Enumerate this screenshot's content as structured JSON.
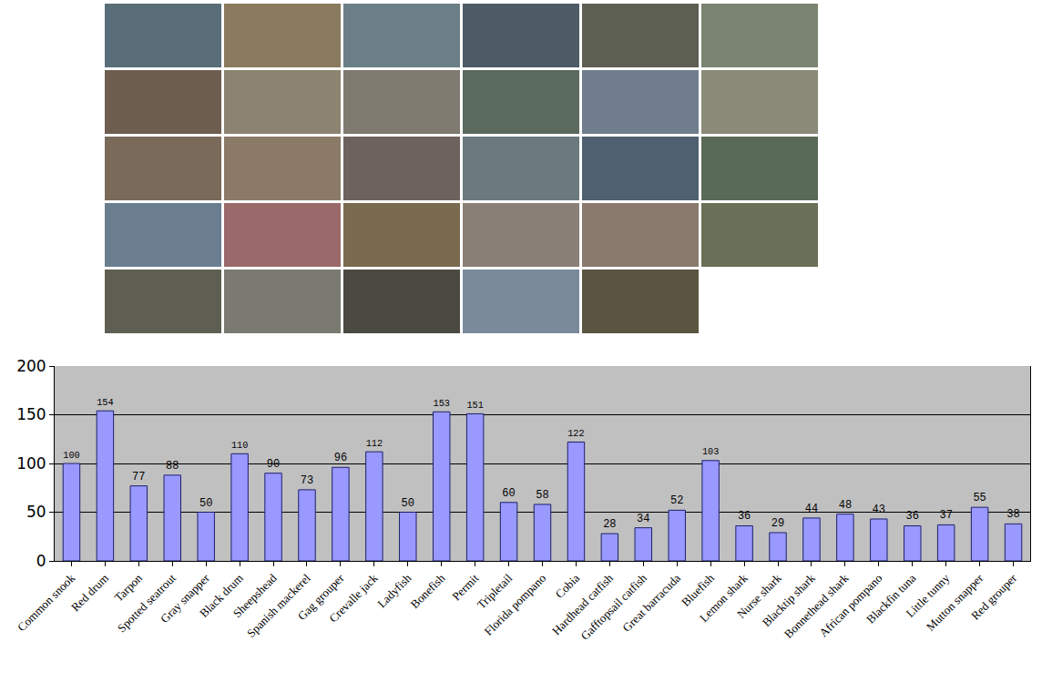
{
  "chart_data": {
    "type": "bar",
    "categories": [
      "Common snook",
      "Red drum",
      "Tarpon",
      "Spotted seatrout",
      "Gray snapper",
      "Black drum",
      "Sheepshead",
      "Spanish mackerel",
      "Gag grouper",
      "Crevalle jack",
      "Ladyfish",
      "Bonefish",
      "Permit",
      "Tripletail",
      "Florida pompano",
      "Cobia",
      "Hardhead catfish",
      "Gafftopsail catfish",
      "Great barracuda",
      "Bluefish",
      "Lemon shark",
      "Nurse shark",
      "Blacktip shark",
      "Bonnethead shark",
      "African pompano",
      "Blackfin tuna",
      "Little tunny",
      "Mutton snapper",
      "Red grouper"
    ],
    "values": [
      100,
      154,
      77,
      88,
      50,
      110,
      90,
      73,
      96,
      112,
      50,
      153,
      151,
      60,
      58,
      122,
      28,
      34,
      52,
      103,
      36,
      29,
      44,
      48,
      43,
      36,
      37,
      55,
      38
    ],
    "color": "#9999ff",
    "ylim": [
      0,
      200
    ],
    "yticks": [
      0,
      50,
      100,
      150,
      200
    ],
    "grid": true,
    "data_labels": true
  }
}
